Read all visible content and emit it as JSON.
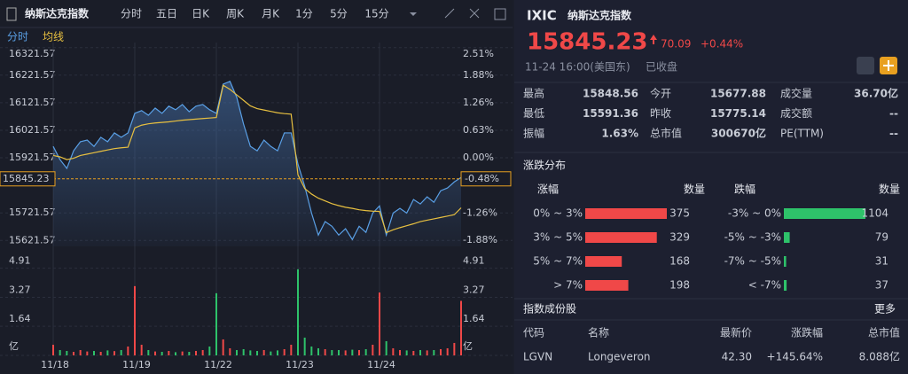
{
  "toolbar": {
    "title": "纳斯达克指数",
    "tabs": [
      "分时",
      "五日",
      "日K",
      "周K",
      "月K",
      "1分",
      "5分",
      "15分"
    ]
  },
  "chart_data": {
    "type": "line",
    "days": [
      "11/18",
      "11/19",
      "11/22",
      "11/23",
      "11/24"
    ],
    "series": [
      {
        "name": "分时",
        "color": "#5aa0e6",
        "values": [
          15963,
          15915,
          15883,
          15947,
          15980,
          15986,
          15963,
          15996,
          15980,
          16012,
          15996,
          16012,
          16083,
          16093,
          16076,
          16102,
          16083,
          16109,
          16096,
          16115,
          16089,
          16109,
          16115,
          16096,
          16083,
          16189,
          16199,
          16141,
          16044,
          15963,
          15947,
          15986,
          15963,
          15947,
          16012,
          16012,
          15899,
          15818,
          15721,
          15641,
          15690,
          15673,
          15641,
          15664,
          15625,
          15673,
          15651,
          15721,
          15747,
          15641,
          15721,
          15738,
          15721,
          15770,
          15754,
          15780,
          15760,
          15802,
          15812,
          15834,
          15850
        ]
      },
      {
        "name": "均线",
        "color": "#e8c040",
        "values": [
          15930,
          15925,
          15915,
          15920,
          15930,
          15935,
          15940,
          15945,
          15950,
          15955,
          15958,
          15960,
          16030,
          16040,
          16045,
          16048,
          16050,
          16052,
          16055,
          16058,
          16060,
          16062,
          16064,
          16066,
          16068,
          16185,
          16170,
          16150,
          16130,
          16110,
          16100,
          16095,
          16090,
          16085,
          16082,
          16080,
          15860,
          15810,
          15790,
          15775,
          15765,
          15755,
          15748,
          15742,
          15738,
          15733,
          15730,
          15728,
          15727,
          15650,
          15660,
          15668,
          15675,
          15682,
          15690,
          15695,
          15700,
          15705,
          15710,
          15715,
          15740
        ]
      }
    ],
    "ylim": [
      15600,
      16340
    ],
    "yticks": [
      16321.57,
      16221.57,
      16121.57,
      16021.57,
      15921.57,
      15721.57,
      15621.57
    ],
    "y2lim": [
      -2.02,
      2.63
    ],
    "y2ticks": [
      {
        "value": 2.51,
        "label": "2.51%"
      },
      {
        "value": 1.88,
        "label": "1.88%"
      },
      {
        "value": 1.26,
        "label": "1.26%"
      },
      {
        "value": 0.63,
        "label": "0.63%"
      },
      {
        "value": 0,
        "label": "0.00%"
      },
      {
        "value": -1.26,
        "label": "-1.26%"
      },
      {
        "value": -1.88,
        "label": "-1.88%"
      }
    ],
    "last": {
      "value": 15845.23,
      "pct": {
        "value": -0.48,
        "label": "-0.48%"
      }
    },
    "volume": {
      "values": [
        0.6,
        0.3,
        0.25,
        0.2,
        0.3,
        0.22,
        0.25,
        0.2,
        0.28,
        0.24,
        0.3,
        0.5,
        3.9,
        0.6,
        0.3,
        0.22,
        0.2,
        0.25,
        0.18,
        0.22,
        0.2,
        0.25,
        0.3,
        0.5,
        3.5,
        0.9,
        0.4,
        0.3,
        0.35,
        0.28,
        0.25,
        0.3,
        0.22,
        0.28,
        0.35,
        0.6,
        4.85,
        1.0,
        0.5,
        0.4,
        0.35,
        0.3,
        0.3,
        0.28,
        0.32,
        0.3,
        0.35,
        0.6,
        3.54,
        0.8,
        0.4,
        0.3,
        0.28,
        0.25,
        0.3,
        0.28,
        0.3,
        0.35,
        0.4,
        0.7,
        3.07
      ],
      "ylim": [
        0,
        5.24
      ],
      "yticks": [
        4.91,
        3.27,
        1.64,
        {
          "value": 0,
          "label": "亿"
        }
      ]
    }
  },
  "quote": {
    "code": "IXIC",
    "name": "纳斯达克指数",
    "price": 15845.23,
    "change": 70.09,
    "change_pct": "+0.44%",
    "time": "11-24 16:00(美国东)",
    "status": "已收盘",
    "stats": [
      [
        {
          "label": "最高",
          "value": 15848.56
        },
        {
          "label": "今开",
          "value": 15677.88
        },
        {
          "label": "成交量",
          "value": "36.70亿"
        }
      ],
      [
        {
          "label": "最低",
          "value": 15591.36
        },
        {
          "label": "昨收",
          "value": 15775.14
        },
        {
          "label": "成交额",
          "value": "--"
        }
      ],
      [
        {
          "label": "振幅",
          "value": "1.63%"
        },
        {
          "label": "总市值",
          "value": "300670亿"
        },
        {
          "label": "PE(TTM)",
          "value": "--"
        }
      ]
    ]
  },
  "distribution": {
    "title": "涨跌分布",
    "up_header": "涨幅",
    "down_header": "跌幅",
    "count_header": "数量",
    "up": [
      {
        "range": "0% ~ 3%",
        "count": 375
      },
      {
        "range": "3% ~ 5%",
        "count": 329
      },
      {
        "range": "5% ~ 7%",
        "count": 168
      },
      {
        "range": "> 7%",
        "count": 198
      }
    ],
    "down": [
      {
        "range": "-3% ~ 0%",
        "count": 1104
      },
      {
        "range": "-5% ~ -3%",
        "count": 79
      },
      {
        "range": "-7% ~ -5%",
        "count": 31
      },
      {
        "range": "< -7%",
        "count": 37
      }
    ]
  },
  "constituents": {
    "title": "指数成份股",
    "more": "更多",
    "headers": [
      "代码",
      "名称",
      "最新价",
      "涨跌幅",
      "总市值"
    ],
    "rows": [
      [
        "LGVN",
        "Longeveron",
        "42.30",
        "+145.64%",
        "8.088亿"
      ]
    ]
  }
}
